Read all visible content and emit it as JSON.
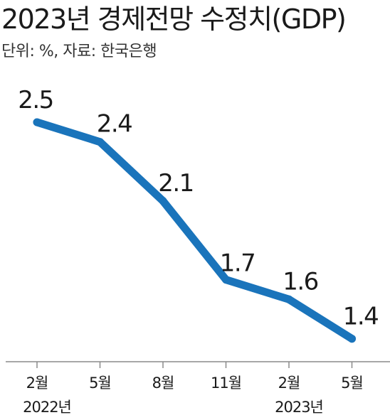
{
  "header": {
    "title": "2023년 경제전망 수정치(GDP)",
    "subtitle": "단위: %, 자료: 한국은행"
  },
  "chart_data": {
    "type": "line",
    "categories": [
      "2월",
      "5월",
      "8월",
      "11월",
      "2월",
      "5월"
    ],
    "year_labels": [
      "2022년",
      "",
      "",
      "",
      "2023년",
      ""
    ],
    "values": [
      2.5,
      2.4,
      2.1,
      1.7,
      1.6,
      1.4
    ],
    "value_labels": [
      "2.5",
      "2.4",
      "2.1",
      "1.7",
      "1.6",
      "1.4"
    ],
    "title": "2023년 경제전망 수정치(GDP)",
    "xlabel": "",
    "ylabel": "",
    "grid": false,
    "colors": {
      "line": "#1a74bb",
      "axis": "#8a8a8a"
    }
  }
}
